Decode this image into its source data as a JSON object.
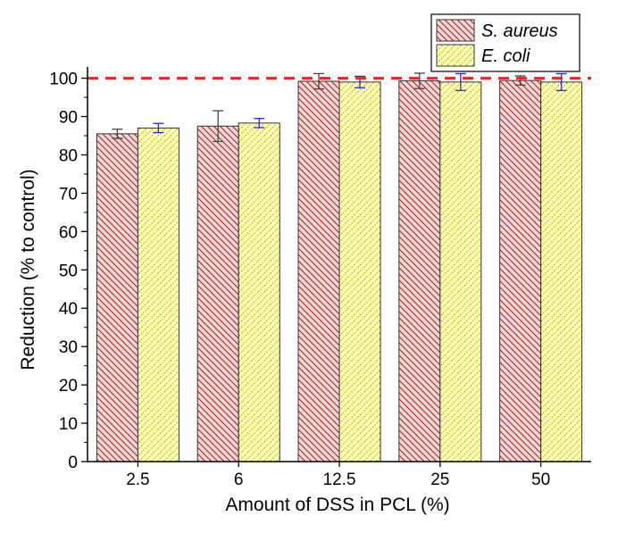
{
  "chart_data": {
    "type": "bar",
    "categories": [
      "2.5",
      "6",
      "12.5",
      "25",
      "50"
    ],
    "series": [
      {
        "name": "S. aureus",
        "values": [
          85.5,
          87.5,
          99.2,
          99.3,
          99.4
        ],
        "errors": [
          1.2,
          4.0,
          2.0,
          2.0,
          1.2
        ],
        "color": "#a52a2a",
        "fill": "#f2d3d3"
      },
      {
        "name": "E. coli",
        "values": [
          87.0,
          88.3,
          99.0,
          99.0,
          99.0
        ],
        "errors": [
          1.2,
          1.2,
          1.5,
          2.2,
          2.2
        ],
        "color": "#9c9c00",
        "fill": "#ffffb8"
      }
    ],
    "xlabel": "Amount of DSS in PCL (%)",
    "ylabel": "Reduction (% to control)",
    "ylim": [
      0,
      102
    ],
    "yticks": [
      0,
      10,
      20,
      30,
      40,
      50,
      60,
      70,
      80,
      90,
      100
    ],
    "reference_line": {
      "y": 100,
      "color": "#e8262a",
      "style": "dashed"
    },
    "legend_position": "top-right",
    "grid": false
  }
}
